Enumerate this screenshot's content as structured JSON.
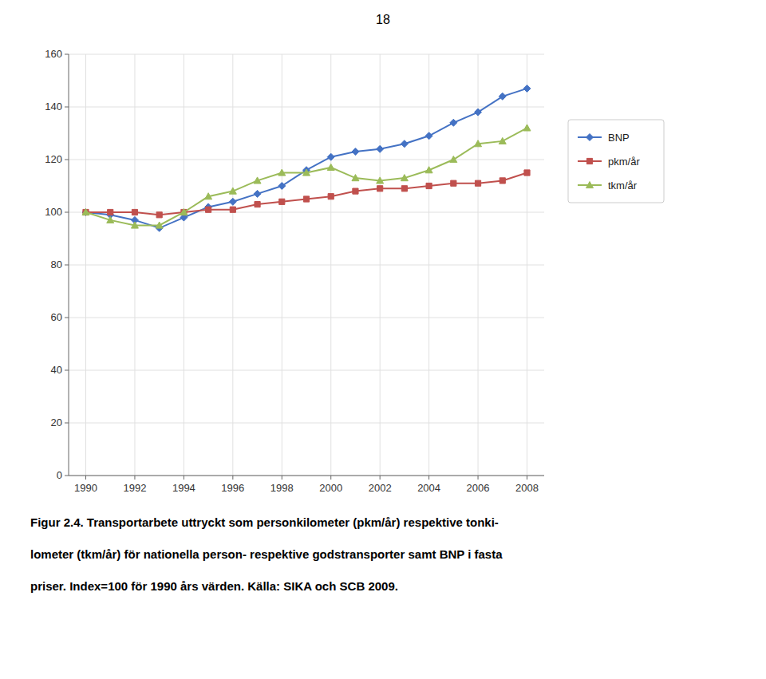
{
  "chart_data": {
    "type": "line",
    "title": [
      "Figur 2.4. Transportarbete uttryckt som personkilometer (pkm/år) respektive tonki-",
      "lometer (tkm/år) för nationella person- respektive godstransporter samt BNP i fasta",
      "priser. Index=100 för 1990 års värden. Källa: SIKA och SCB 2009."
    ],
    "annotations": [
      "18"
    ],
    "x": [
      1990,
      1991,
      1992,
      1993,
      1994,
      1995,
      1996,
      1997,
      1998,
      1999,
      2000,
      2001,
      2002,
      2003,
      2004,
      2005,
      2006,
      2007,
      2008
    ],
    "series": [
      {
        "name": "BNP",
        "color": "#4472C4",
        "marker": "diamond",
        "values": [
          100,
          99,
          97,
          94,
          98,
          102,
          104,
          107,
          110,
          116,
          121,
          123,
          124,
          126,
          129,
          134,
          138,
          144,
          147
        ]
      },
      {
        "name": "pkm/år",
        "color": "#C0504D",
        "marker": "square",
        "values": [
          100,
          100,
          100,
          99,
          100,
          101,
          101,
          103,
          104,
          105,
          106,
          108,
          109,
          109,
          110,
          111,
          111,
          112,
          115
        ]
      },
      {
        "name": "tkm/år",
        "color": "#9BBB59",
        "marker": "triangle",
        "values": [
          100,
          97,
          95,
          95,
          100,
          106,
          108,
          112,
          115,
          115,
          117,
          113,
          112,
          113,
          116,
          120,
          126,
          127,
          132
        ]
      }
    ],
    "xlim": [
      1989.3,
      2008.7
    ],
    "xticks": [
      1990,
      1992,
      1994,
      1996,
      1998,
      2000,
      2002,
      2004,
      2006,
      2008
    ],
    "ylim": [
      0,
      160
    ],
    "yticks": [
      0,
      20,
      40,
      60,
      80,
      100,
      120,
      140,
      160
    ],
    "grid": true,
    "legend": "right"
  }
}
